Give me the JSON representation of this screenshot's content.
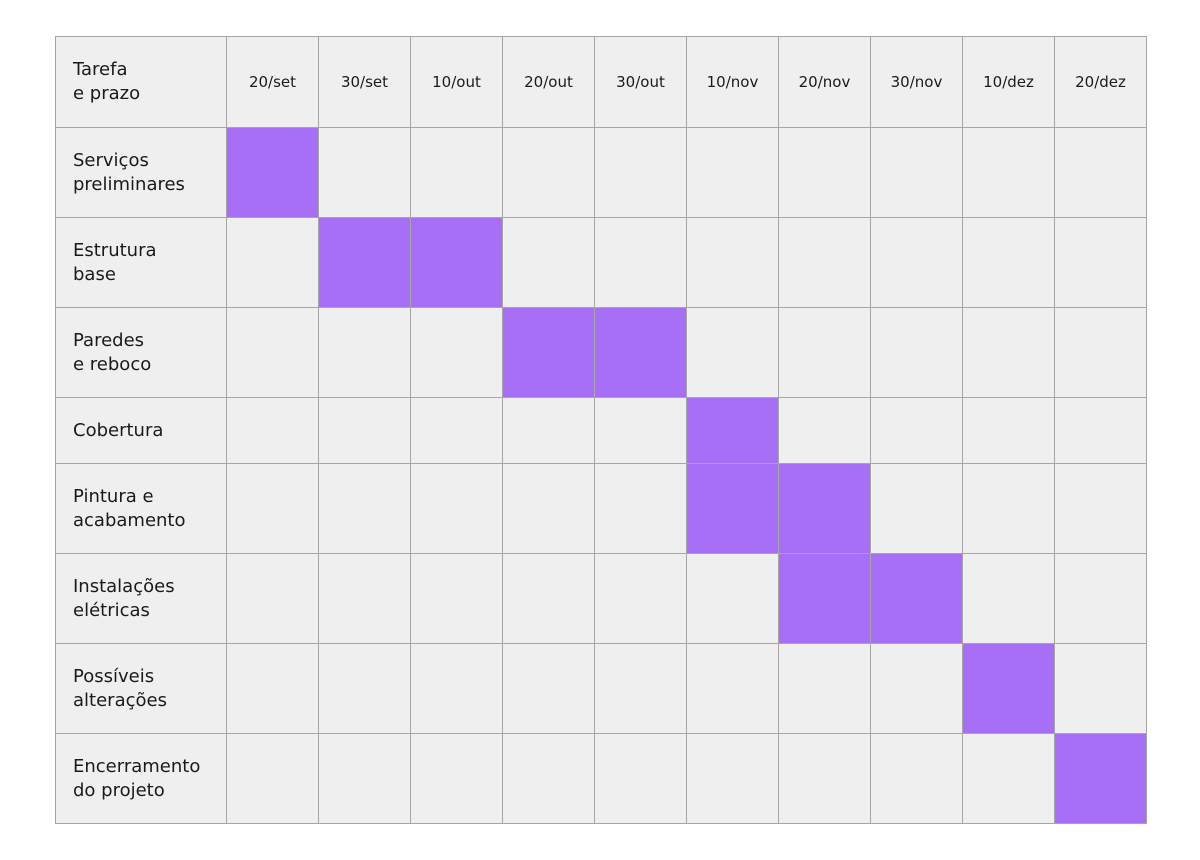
{
  "chart_data": {
    "type": "table",
    "corner_header": [
      "Tarefa",
      "e prazo"
    ],
    "periods": [
      "20/set",
      "30/set",
      "10/out",
      "20/out",
      "30/out",
      "10/nov",
      "20/nov",
      "30/nov",
      "10/dez",
      "20/dez"
    ],
    "tasks": [
      {
        "label": [
          "Serviços",
          "preliminares"
        ],
        "active": [
          0
        ]
      },
      {
        "label": [
          "Estrutura",
          "base"
        ],
        "active": [
          1,
          2
        ]
      },
      {
        "label": [
          "Paredes",
          "e reboco"
        ],
        "active": [
          3,
          4
        ]
      },
      {
        "label": [
          "Cobertura"
        ],
        "active": [
          5
        ]
      },
      {
        "label": [
          "Pintura e",
          "acabamento"
        ],
        "active": [
          5,
          6
        ]
      },
      {
        "label": [
          "Instalações",
          "elétricas"
        ],
        "active": [
          6,
          7
        ]
      },
      {
        "label": [
          "Possíveis",
          "alterações"
        ],
        "active": [
          8
        ]
      },
      {
        "label": [
          "Encerramento",
          "do projeto"
        ],
        "active": [
          9
        ]
      }
    ],
    "colors": {
      "bar": "#a66ff5",
      "cell_background": "#efefef",
      "grid_line": "#a6a6a6"
    }
  }
}
